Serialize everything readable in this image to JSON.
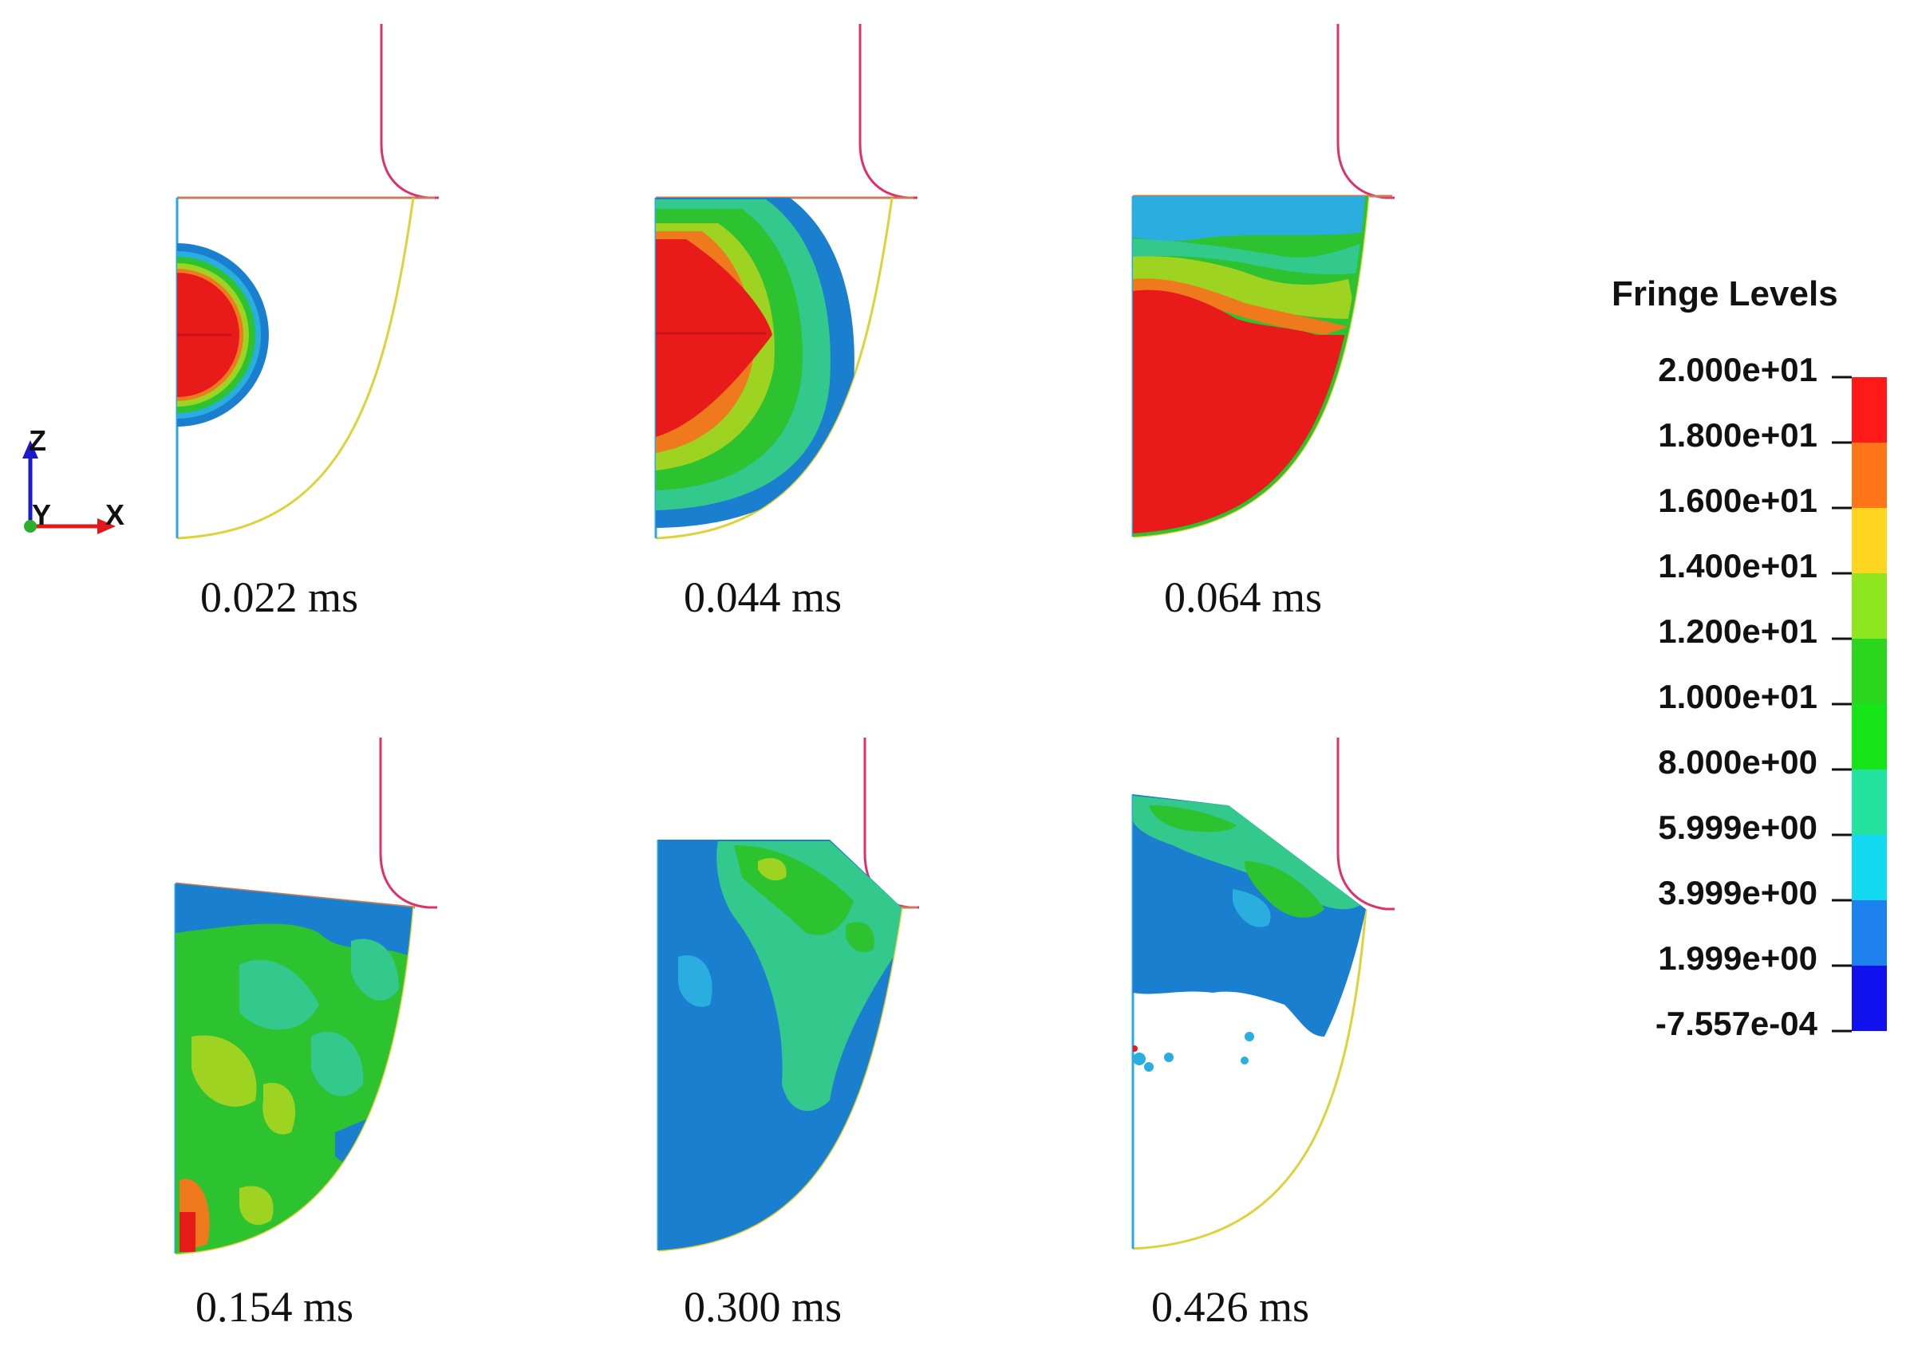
{
  "frames": [
    {
      "time_label": "0.022 ms"
    },
    {
      "time_label": "0.044 ms"
    },
    {
      "time_label": "0.064 ms"
    },
    {
      "time_label": "0.154 ms"
    },
    {
      "time_label": "0.300 ms"
    },
    {
      "time_label": "0.426 ms"
    }
  ],
  "legend": {
    "title": "Fringe Levels",
    "levels": [
      "2.000e+01",
      "1.800e+01",
      "1.600e+01",
      "1.400e+01",
      "1.200e+01",
      "1.000e+01",
      "8.000e+00",
      "5.999e+00",
      "3.999e+00",
      "1.999e+00",
      "-7.557e-04"
    ],
    "band_colors": [
      "#ff1a1a",
      "#ff7518",
      "#ffd51f",
      "#8de61e",
      "#2ad71e",
      "#15e516",
      "#24e29f",
      "#12d8f0",
      "#1e82ee",
      "#1111ee"
    ]
  },
  "triad": {
    "z_label": "Z",
    "y_label": "Y",
    "x_label": "X"
  },
  "colors": {
    "red": "#e81a1a",
    "dark_red": "#c8121a",
    "orange": "#ef7a1d",
    "yellow_green": "#9ed321",
    "green": "#2dc22f",
    "teal": "#33c88c",
    "light_blue": "#2aaee0",
    "blue": "#1b7fcf",
    "deep_blue": "#1a63c0",
    "pink_outline": "#e0306a",
    "yellow_outline": "#dcd33a",
    "brown_line": "#c87a5a",
    "cyan_axis": "#2aa8e0"
  }
}
